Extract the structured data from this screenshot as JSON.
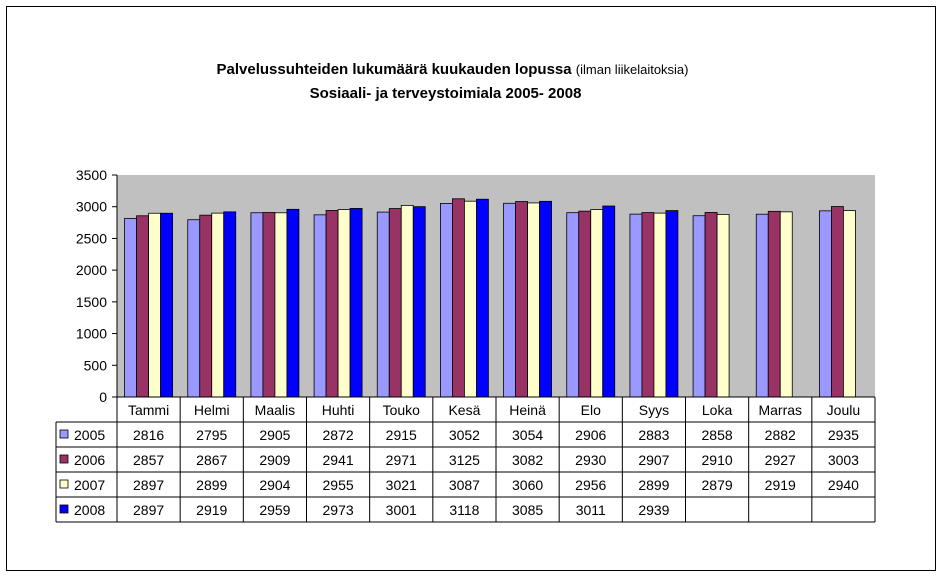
{
  "chart_data": {
    "type": "bar",
    "title": "Palvelussuhteiden lukumäärä kuukauden lopussa",
    "title_note": "(ilman liikelaitoksia)",
    "subtitle": "Sosiaali- ja terveystoimiala 2005- 2008",
    "categories": [
      "Tammi",
      "Helmi",
      "Maalis",
      "Huhti",
      "Touko",
      "Kesä",
      "Heinä",
      "Elo",
      "Syys",
      "Loka",
      "Marras",
      "Joulu"
    ],
    "ylim": [
      0,
      3500
    ],
    "yticks": [
      0,
      500,
      1000,
      1500,
      2000,
      2500,
      3000,
      3500
    ],
    "grid": false,
    "plot_background": "#c0c0c0",
    "legend": "data-table",
    "series": [
      {
        "name": "2005",
        "color": "#9999ff",
        "values": [
          2816,
          2795,
          2905,
          2872,
          2915,
          3052,
          3054,
          2906,
          2883,
          2858,
          2882,
          2935
        ]
      },
      {
        "name": "2006",
        "color": "#993366",
        "values": [
          2857,
          2867,
          2909,
          2941,
          2971,
          3125,
          3082,
          2930,
          2907,
          2910,
          2927,
          3003
        ]
      },
      {
        "name": "2007",
        "color": "#ffffcc",
        "values": [
          2897,
          2899,
          2904,
          2955,
          3021,
          3087,
          3060,
          2956,
          2899,
          2879,
          2919,
          2940
        ]
      },
      {
        "name": "2008",
        "color": "#0000ff",
        "values": [
          2897,
          2919,
          2959,
          2973,
          3001,
          3118,
          3085,
          3011,
          2939,
          null,
          null,
          null
        ]
      }
    ]
  }
}
